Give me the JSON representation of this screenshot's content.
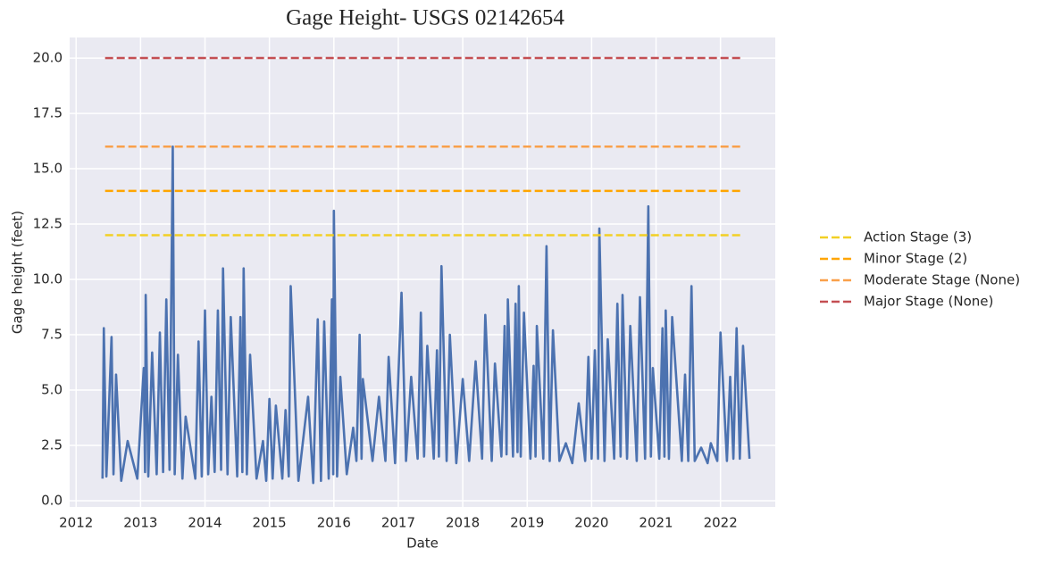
{
  "chart_data": {
    "type": "line",
    "title": "Gage Height- USGS 02142654",
    "xlabel": "Date",
    "ylabel": "Gage height (feet)",
    "xlim": [
      2011.9,
      2022.85
    ],
    "ylim": [
      -0.28,
      20.93
    ],
    "xticks": [
      2012,
      2013,
      2014,
      2015,
      2016,
      2017,
      2018,
      2019,
      2020,
      2021,
      2022
    ],
    "yticks": [
      {
        "value": 0,
        "label": "0.0"
      },
      2.5,
      {
        "value": 5,
        "label": "5.0"
      },
      7.5,
      {
        "value": 10,
        "label": "10.0"
      },
      12.5,
      {
        "value": 15,
        "label": "15.0"
      },
      17.5,
      {
        "value": 20,
        "label": "20.0"
      }
    ],
    "grid": true,
    "legend": "outside right",
    "series": [
      {
        "color": "#4c72b0",
        "dashed": false,
        "x": [
          2012.41,
          2012.43,
          2012.47,
          2012.55,
          2012.58,
          2012.62,
          2012.7,
          2012.8,
          2012.95,
          2013.05,
          2013.07,
          2013.08,
          2013.12,
          2013.18,
          2013.25,
          2013.3,
          2013.35,
          2013.4,
          2013.45,
          2013.5,
          2013.53,
          2013.58,
          2013.65,
          2013.7,
          2013.85,
          2013.9,
          2013.95,
          2014.0,
          2014.05,
          2014.1,
          2014.15,
          2014.2,
          2014.25,
          2014.28,
          2014.35,
          2014.4,
          2014.5,
          2014.55,
          2014.58,
          2014.6,
          2014.65,
          2014.7,
          2014.8,
          2014.9,
          2014.95,
          2015.0,
          2015.05,
          2015.1,
          2015.2,
          2015.25,
          2015.3,
          2015.33,
          2015.45,
          2015.6,
          2015.68,
          2015.75,
          2015.8,
          2015.85,
          2015.92,
          2015.97,
          2015.99,
          2016.0,
          2016.05,
          2016.1,
          2016.2,
          2016.3,
          2016.35,
          2016.4,
          2016.43,
          2016.45,
          2016.6,
          2016.7,
          2016.8,
          2016.85,
          2016.95,
          2017.05,
          2017.12,
          2017.2,
          2017.3,
          2017.35,
          2017.4,
          2017.45,
          2017.55,
          2017.6,
          2017.63,
          2017.67,
          2017.75,
          2017.8,
          2017.9,
          2018.0,
          2018.1,
          2018.2,
          2018.3,
          2018.35,
          2018.45,
          2018.5,
          2018.6,
          2018.65,
          2018.68,
          2018.7,
          2018.78,
          2018.82,
          2018.85,
          2018.87,
          2018.9,
          2018.95,
          2019.05,
          2019.1,
          2019.13,
          2019.15,
          2019.25,
          2019.3,
          2019.35,
          2019.4,
          2019.5,
          2019.6,
          2019.7,
          2019.8,
          2019.9,
          2019.95,
          2020.0,
          2020.05,
          2020.1,
          2020.12,
          2020.2,
          2020.25,
          2020.35,
          2020.4,
          2020.45,
          2020.48,
          2020.55,
          2020.6,
          2020.7,
          2020.75,
          2020.83,
          2020.88,
          2020.92,
          2020.95,
          2021.05,
          2021.1,
          2021.13,
          2021.15,
          2021.2,
          2021.25,
          2021.4,
          2021.45,
          2021.5,
          2021.55,
          2021.6,
          2021.7,
          2021.8,
          2021.85,
          2021.95,
          2022.0,
          2022.1,
          2022.15,
          2022.2,
          2022.25,
          2022.3,
          2022.35,
          2022.45
        ],
        "values": [
          1.0,
          7.8,
          1.1,
          7.4,
          1.2,
          5.7,
          0.9,
          2.7,
          1.0,
          6.0,
          1.3,
          9.3,
          1.1,
          6.7,
          1.2,
          7.6,
          1.3,
          9.1,
          1.4,
          16.0,
          1.2,
          6.6,
          1.0,
          3.8,
          1.0,
          7.2,
          1.1,
          8.6,
          1.2,
          4.7,
          1.3,
          8.6,
          1.4,
          10.5,
          1.2,
          8.3,
          1.1,
          8.3,
          1.3,
          10.5,
          1.2,
          6.6,
          1.0,
          2.7,
          0.9,
          4.6,
          1.0,
          4.3,
          1.0,
          4.1,
          1.1,
          9.7,
          0.9,
          4.7,
          0.8,
          8.2,
          0.9,
          8.1,
          1.0,
          9.1,
          1.2,
          13.1,
          1.1,
          5.6,
          1.2,
          3.3,
          1.8,
          7.5,
          1.9,
          5.5,
          1.8,
          4.7,
          1.8,
          6.5,
          1.7,
          9.4,
          1.8,
          5.6,
          1.9,
          8.5,
          2.0,
          7.0,
          1.9,
          6.8,
          2.0,
          10.6,
          1.8,
          7.5,
          1.7,
          5.5,
          1.8,
          6.3,
          1.9,
          8.4,
          1.8,
          6.2,
          2.0,
          7.9,
          2.1,
          9.1,
          2.0,
          8.9,
          2.2,
          9.7,
          2.0,
          8.5,
          1.9,
          6.1,
          2.0,
          7.9,
          1.9,
          11.5,
          1.8,
          7.7,
          1.8,
          2.6,
          1.7,
          4.4,
          1.8,
          6.5,
          1.9,
          6.8,
          1.9,
          12.3,
          1.8,
          7.3,
          1.9,
          8.9,
          2.0,
          9.3,
          1.9,
          7.9,
          1.8,
          9.2,
          1.9,
          13.3,
          2.0,
          6.0,
          1.9,
          7.8,
          2.0,
          8.6,
          1.9,
          8.3,
          1.8,
          5.7,
          1.8,
          9.7,
          1.8,
          2.4,
          1.7,
          2.6,
          1.8,
          7.6,
          1.8,
          5.6,
          1.9,
          7.8,
          1.9,
          7.0,
          1.9
        ]
      },
      {
        "name": "Action Stage (3)",
        "color": "#f2d024",
        "dashed": true,
        "x": [
          2012.45,
          2022.36
        ],
        "values": [
          12,
          12
        ]
      },
      {
        "name": "Minor Stage (2)",
        "color": "#ffa500",
        "dashed": true,
        "x": [
          2012.45,
          2022.36
        ],
        "values": [
          14,
          14
        ]
      },
      {
        "name": "Moderate Stage (None)",
        "color": "#f9a04a",
        "dashed": true,
        "x": [
          2012.45,
          2022.36
        ],
        "values": [
          16,
          16
        ]
      },
      {
        "name": "Major Stage (None)",
        "color": "#c44e52",
        "dashed": true,
        "x": [
          2012.45,
          2022.36
        ],
        "values": [
          20,
          20
        ]
      }
    ]
  }
}
